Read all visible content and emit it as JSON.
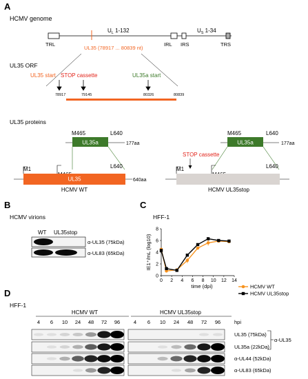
{
  "panels": {
    "A": {
      "letter": "A",
      "genome_title": "HCMV genome",
      "trl": "TRL",
      "ul_label": "U",
      "ul_sub": "L",
      "ul_range": " 1-132",
      "irl": "IRL",
      "irs": "IRS",
      "us_label": "U",
      "us_sub": "S",
      "us_range": " 1-34",
      "trs": "TRS",
      "ul35_coords": "UL35 (78917 ... 80839 nt)",
      "orf_title": "UL35 ORF",
      "ul35_start": "UL35 start",
      "stop_cassette": "STOP cassette",
      "ul35a_start": "UL35a start",
      "pos_78917": "78917",
      "pos_79145": "79145",
      "pos_80326": "80326",
      "pos_80839": "80839",
      "proteins_title": "UL35 proteins",
      "m465": "M465",
      "l640": "L640",
      "ul35a": "UL35a",
      "aa_177": "177aa",
      "m1": "M1",
      "ul35": "UL35",
      "aa_640": "640aa",
      "hcmv_wt": "HCMV WT",
      "stop_cassette_2": "STOP cassette",
      "hcmv_stop": "HCMV UL35stop"
    },
    "B": {
      "letter": "B",
      "title": "HCMV virions",
      "lane_wt": "WT",
      "lane_stop": "UL35stop",
      "band_ul35": "α-UL35 (75kDa)",
      "band_ul83": "α-UL83 (65kDa)"
    },
    "C": {
      "letter": "C",
      "title": "HFF-1"
    },
    "D": {
      "letter": "D",
      "title": "HFF-1",
      "group_wt": "HCMV WT",
      "group_stop": "HCMV UL35stop",
      "hpi": "hpi",
      "timepoints": [
        "4",
        "6",
        "10",
        "24",
        "48",
        "72",
        "96"
      ],
      "rows": [
        "UL35 (75kDa)",
        "UL35a (22kDa)",
        "α-UL44 (52kDa)",
        "α-UL83 (65kDa)"
      ],
      "bracket_label": "α-UL35"
    }
  },
  "colors": {
    "orange": "#f26522",
    "green": "#3d7a2a",
    "stop_gray": "#d9d4d1",
    "wt_line": "#f7931e",
    "stop_line": "#000000",
    "green_text": "#3d7a2a",
    "red_text": "#e2231a"
  },
  "chart_data": {
    "type": "line",
    "title": "HFF-1",
    "xlabel": "time (dpi)",
    "ylabel": "IE1⁺/mL (log10)",
    "xlim": [
      0,
      14
    ],
    "ylim": [
      0,
      8
    ],
    "xticks": [
      0,
      2,
      4,
      6,
      8,
      10,
      12,
      14
    ],
    "yticks": [
      0,
      2,
      4,
      6,
      8
    ],
    "legend_position": "right",
    "series": [
      {
        "name": "HCMV WT",
        "color": "#f7931e",
        "marker": "circle",
        "x": [
          0,
          1,
          3,
          5,
          7,
          9,
          11,
          13
        ],
        "y": [
          4.5,
          0.8,
          1.0,
          2.6,
          4.7,
          5.6,
          5.9,
          5.8
        ]
      },
      {
        "name": "HCMV UL35stop",
        "color": "#000000",
        "marker": "square",
        "x": [
          0,
          1,
          3,
          5,
          7,
          9,
          11,
          13
        ],
        "y": [
          4.3,
          1.2,
          0.9,
          3.5,
          5.3,
          6.3,
          6.0,
          5.9
        ]
      }
    ]
  }
}
